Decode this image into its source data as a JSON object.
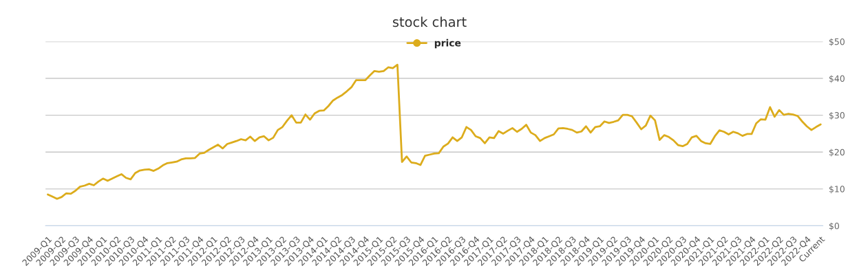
{
  "chart_data": {
    "type": "line",
    "title": "stock chart",
    "categories": [
      "2009-Q1",
      null,
      null,
      "2009-Q2",
      null,
      null,
      "2009-Q3",
      null,
      null,
      "2009-Q4",
      null,
      null,
      "2010-Q1",
      null,
      null,
      "2010-Q2",
      null,
      null,
      "2010-Q3",
      null,
      null,
      "2010-Q4",
      null,
      null,
      "2011-Q1",
      null,
      null,
      "2011-Q2",
      null,
      null,
      "2011-Q3",
      null,
      null,
      "2011-Q4",
      null,
      null,
      "2012-Q1",
      null,
      null,
      "2012-Q2",
      null,
      null,
      "2012-Q3",
      null,
      null,
      "2012-Q4",
      null,
      null,
      "2013-Q1",
      null,
      null,
      "2013-Q2",
      null,
      null,
      "2013-Q3",
      null,
      null,
      "2013-Q4",
      null,
      null,
      "2014-Q1",
      null,
      null,
      "2014-Q2",
      null,
      null,
      "2014-Q3",
      null,
      null,
      "2014-Q4",
      null,
      null,
      "2015-Q1",
      null,
      null,
      "2015-Q2",
      null,
      null,
      "2015-Q3",
      null,
      null,
      "2015-Q4",
      null,
      null,
      "2016-Q1",
      null,
      null,
      "2016-Q2",
      null,
      null,
      "2016-Q3",
      null,
      null,
      "2016-Q4",
      null,
      null,
      "2017-Q1",
      null,
      null,
      "2017-Q2",
      null,
      null,
      "2017-Q3",
      null,
      null,
      "2017-Q4",
      null,
      null,
      "2018-Q1",
      null,
      null,
      "2018-Q2",
      null,
      null,
      "2018-Q3",
      null,
      null,
      "2018-Q4",
      null,
      null,
      "2019-Q1",
      null,
      null,
      "2019-Q2",
      null,
      null,
      "2019-Q3",
      null,
      null,
      "2019-Q4",
      null,
      null,
      "2020-Q1",
      null,
      null,
      "2020-Q2",
      null,
      null,
      "2020-Q3",
      null,
      null,
      "2020-Q4",
      null,
      null,
      "2021-Q1",
      null,
      null,
      "2021-Q2",
      null,
      null,
      "2021-Q3",
      null,
      null,
      "2021-Q4",
      null,
      null,
      "2022-Q1",
      null,
      null,
      "2022-Q2",
      null,
      null,
      "2022-Q3",
      null,
      null,
      "2022-Q4",
      null,
      null,
      "Current"
    ],
    "series": [
      {
        "name": "price",
        "color": "#dcac1c",
        "values": [
          8.5,
          7.9,
          7.3,
          7.8,
          8.8,
          8.7,
          9.5,
          10.6,
          10.9,
          11.4,
          11.0,
          12.0,
          12.8,
          12.2,
          12.8,
          13.4,
          14.0,
          13.0,
          12.6,
          14.3,
          15.0,
          15.2,
          15.3,
          14.9,
          15.5,
          16.4,
          17.0,
          17.2,
          17.4,
          18.0,
          18.3,
          18.3,
          18.4,
          19.6,
          19.8,
          20.6,
          21.3,
          22.0,
          21.0,
          22.2,
          22.6,
          23.0,
          23.5,
          23.2,
          24.2,
          23.0,
          24.0,
          24.3,
          23.2,
          23.9,
          26.0,
          26.8,
          28.5,
          30.0,
          28.0,
          28.0,
          30.2,
          28.8,
          30.5,
          31.2,
          31.3,
          32.5,
          34.0,
          34.8,
          35.5,
          36.5,
          37.6,
          39.5,
          39.5,
          39.5,
          40.8,
          42.0,
          41.8,
          42.0,
          43.0,
          42.8,
          43.7,
          17.3,
          18.8,
          17.2,
          17.0,
          16.5,
          19.0,
          19.3,
          19.6,
          19.7,
          21.5,
          22.3,
          24.0,
          23.0,
          24.0,
          26.8,
          26.0,
          24.3,
          23.8,
          22.4,
          24.0,
          23.8,
          25.7,
          25.0,
          25.8,
          26.5,
          25.5,
          26.3,
          27.4,
          25.3,
          24.6,
          23.0,
          23.8,
          24.3,
          24.8,
          26.4,
          26.5,
          26.3,
          26.0,
          25.3,
          25.6,
          27.0,
          25.3,
          26.8,
          27.0,
          28.3,
          27.9,
          28.2,
          28.6,
          30.1,
          30.1,
          29.7,
          28.0,
          26.2,
          27.2,
          29.9,
          28.6,
          23.3,
          24.6,
          24.1,
          23.2,
          21.9,
          21.6,
          22.2,
          24.0,
          24.4,
          23.0,
          22.4,
          22.2,
          24.3,
          25.9,
          25.5,
          24.8,
          25.5,
          25.1,
          24.4,
          24.9,
          24.9,
          27.8,
          28.9,
          28.8,
          32.2,
          29.6,
          31.4,
          30.1,
          30.4,
          30.2,
          29.8,
          28.3,
          27.0,
          26.0,
          26.8,
          27.5
        ]
      }
    ],
    "ylim": [
      0,
      50
    ],
    "yticks": [
      {
        "value": 0,
        "label": "$0"
      },
      {
        "value": 10,
        "label": "$10"
      },
      {
        "value": 20,
        "label": "$20"
      },
      {
        "value": 30,
        "label": "$30"
      },
      {
        "value": 40,
        "label": "$40"
      },
      {
        "value": 50,
        "label": "$50"
      }
    ],
    "grid": "y",
    "legend": "top",
    "marker": "none",
    "line_style": "solid"
  }
}
